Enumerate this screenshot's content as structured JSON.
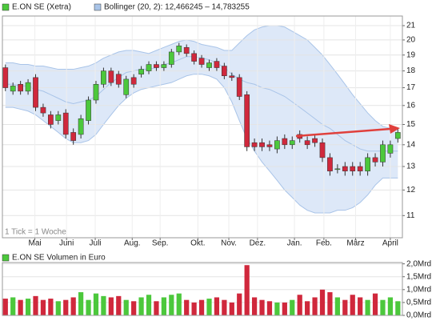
{
  "chart_data": [
    {
      "type": "candlestick",
      "series": [
        {
          "name": "E.ON SE (Xetra)",
          "up_color": "#4cc83c",
          "down_color": "#d0283c",
          "open": [
            18.2,
            16.8,
            17.2,
            16.8,
            17.6,
            15.9,
            15.5,
            15.2,
            15.6,
            14.6,
            14.5,
            15.2,
            16.3,
            17.2,
            18.0,
            17.8,
            16.6,
            17.6,
            17.8,
            18.0,
            18.4,
            18.2,
            18.4,
            19.2,
            19.5,
            19.1,
            18.8,
            18.2,
            18.6,
            18.3,
            17.7,
            17.6,
            16.6,
            14.1,
            14.1,
            14.0,
            13.8,
            14.3,
            14.0,
            14.5,
            14.2,
            14.3,
            14.1,
            13.4,
            12.9,
            13.0,
            13.0,
            13.0,
            12.8,
            13.4,
            13.2,
            13.6,
            14.3
          ],
          "high": [
            18.4,
            17.3,
            17.4,
            17.5,
            17.8,
            16.1,
            15.7,
            15.7,
            15.8,
            14.8,
            15.5,
            16.5,
            17.4,
            18.2,
            18.2,
            18.0,
            17.7,
            17.8,
            18.3,
            18.6,
            18.6,
            18.6,
            19.4,
            19.8,
            19.7,
            19.3,
            19.0,
            18.7,
            18.8,
            18.5,
            17.9,
            17.8,
            16.8,
            14.3,
            14.3,
            14.2,
            14.4,
            14.5,
            14.4,
            14.7,
            14.4,
            14.5,
            14.3,
            13.6,
            13.1,
            13.2,
            13.2,
            13.2,
            13.6,
            13.6,
            14.2,
            14.2,
            14.8
          ],
          "low": [
            16.8,
            16.6,
            16.6,
            16.6,
            15.7,
            15.4,
            14.8,
            15.0,
            14.3,
            14.0,
            14.3,
            15.0,
            16.1,
            17.0,
            17.1,
            17.0,
            16.4,
            17.0,
            17.6,
            17.8,
            18.0,
            18.0,
            18.2,
            19.0,
            18.9,
            18.4,
            18.2,
            18.0,
            18.0,
            17.5,
            17.4,
            16.3,
            13.7,
            13.7,
            13.7,
            13.7,
            13.6,
            13.8,
            13.8,
            14.1,
            13.8,
            13.9,
            13.2,
            12.6,
            12.7,
            12.6,
            12.6,
            12.6,
            12.6,
            13.0,
            13.0,
            13.4,
            14.1
          ],
          "close": [
            17.0,
            17.1,
            16.8,
            17.3,
            15.9,
            15.6,
            15.0,
            15.5,
            14.5,
            14.2,
            15.3,
            16.3,
            17.2,
            18.0,
            17.3,
            17.2,
            17.5,
            17.2,
            18.1,
            18.4,
            18.2,
            18.4,
            19.2,
            19.6,
            19.1,
            18.6,
            18.4,
            18.5,
            18.2,
            17.7,
            17.6,
            16.5,
            13.9,
            13.9,
            13.9,
            13.9,
            14.2,
            14.0,
            14.2,
            14.3,
            14.0,
            14.1,
            13.4,
            12.8,
            12.9,
            12.8,
            12.8,
            12.8,
            13.4,
            13.2,
            14.0,
            14.0,
            14.6
          ]
        }
      ],
      "bollinger": {
        "name": "Bollinger (20, 2): 12,466245 – 14,783255",
        "color": "#a9c4e8",
        "fill": "#dde8f8",
        "upper": [
          18.5,
          18.5,
          18.4,
          18.4,
          18.3,
          18.3,
          18.2,
          18.1,
          18.1,
          18.1,
          18.2,
          18.3,
          18.5,
          18.8,
          19.0,
          19.2,
          19.3,
          19.3,
          19.2,
          19.1,
          19.3,
          19.5,
          19.7,
          19.9,
          20.0,
          19.9,
          19.7,
          19.6,
          19.5,
          19.3,
          19.3,
          19.8,
          20.3,
          20.7,
          20.9,
          21.0,
          21.0,
          20.9,
          20.6,
          20.3,
          20.0,
          19.5,
          19.0,
          18.4,
          17.8,
          17.2,
          16.6,
          16.1,
          15.6,
          15.2,
          14.9,
          14.8,
          14.8
        ],
        "middle": [
          17.2,
          17.2,
          17.1,
          17.1,
          16.9,
          16.8,
          16.6,
          16.4,
          16.2,
          16.1,
          16.2,
          16.3,
          16.5,
          16.9,
          17.3,
          17.6,
          17.9,
          18.0,
          18.1,
          18.1,
          18.2,
          18.4,
          18.5,
          18.7,
          18.9,
          18.9,
          18.8,
          18.7,
          18.5,
          18.2,
          17.8,
          17.5,
          17.3,
          17.2,
          17.0,
          16.9,
          16.7,
          16.5,
          16.2,
          15.9,
          15.6,
          15.3,
          15.0,
          14.8,
          14.5,
          14.2,
          14.0,
          13.8,
          13.7,
          13.7,
          13.7,
          13.7,
          13.7
        ],
        "lower": [
          15.9,
          15.9,
          15.8,
          15.7,
          15.5,
          15.2,
          14.9,
          14.6,
          14.3,
          14.1,
          14.1,
          14.2,
          14.5,
          15.0,
          15.5,
          16.0,
          16.4,
          16.7,
          16.9,
          17.0,
          17.1,
          17.2,
          17.3,
          17.5,
          17.7,
          17.8,
          17.8,
          17.7,
          17.5,
          17.0,
          16.2,
          15.2,
          14.3,
          13.7,
          13.2,
          12.8,
          12.4,
          12.0,
          11.7,
          11.4,
          11.2,
          11.1,
          11.1,
          11.1,
          11.2,
          11.2,
          11.3,
          11.5,
          11.8,
          12.2,
          12.5,
          12.5,
          12.5
        ]
      },
      "x": [
        0,
        1,
        2,
        3,
        4,
        5,
        6,
        7,
        8,
        9,
        10,
        11,
        12,
        13,
        14,
        15,
        16,
        17,
        18,
        19,
        20,
        21,
        22,
        23,
        24,
        25,
        26,
        27,
        28,
        29,
        30,
        31,
        32,
        33,
        34,
        35,
        36,
        37,
        38,
        39,
        40,
        41,
        42,
        43,
        44,
        45,
        46,
        47,
        48,
        49,
        50,
        51,
        52
      ],
      "xlim": [
        -0.4,
        52.6
      ],
      "xticks": [
        {
          "value": 3.9,
          "label": "Mai"
        },
        {
          "value": 8.1,
          "label": "Juni"
        },
        {
          "value": 11.9,
          "label": "Juli"
        },
        {
          "value": 16.8,
          "label": "Aug."
        },
        {
          "value": 20.5,
          "label": "Sep."
        },
        {
          "value": 25.5,
          "label": "Okt."
        },
        {
          "value": 29.6,
          "label": "Nov."
        },
        {
          "value": 33.4,
          "label": "Dez."
        },
        {
          "value": 38.3,
          "label": "Jan."
        },
        {
          "value": 42.2,
          "label": "Feb."
        },
        {
          "value": 46.4,
          "label": "März"
        },
        {
          "value": 51.0,
          "label": "April"
        }
      ],
      "ylim": [
        10.2,
        21.7
      ],
      "log_scale": true,
      "yticks": [
        11,
        12,
        13,
        14,
        15,
        16,
        17,
        18,
        19,
        20,
        21
      ],
      "grid": true,
      "note": "1 Tick = 1 Woche"
    },
    {
      "type": "bar",
      "series": [
        {
          "name": "E.ON SE Volumen in Euro",
          "color": "#4cc83c",
          "values": [
            0.65,
            0.7,
            0.6,
            0.65,
            0.75,
            0.6,
            0.65,
            0.55,
            0.6,
            0.7,
            0.9,
            0.6,
            0.85,
            0.75,
            0.7,
            0.75,
            0.6,
            0.55,
            0.7,
            0.8,
            0.55,
            0.7,
            0.8,
            0.85,
            0.6,
            0.5,
            0.6,
            0.65,
            0.7,
            0.6,
            0.5,
            0.85,
            1.95,
            0.7,
            0.6,
            0.55,
            0.5,
            0.5,
            0.6,
            0.8,
            0.55,
            0.7,
            1.0,
            0.9,
            0.7,
            0.6,
            0.8,
            0.7,
            0.6,
            0.85,
            0.6,
            0.7,
            0.55
          ]
        }
      ],
      "ylim": [
        0,
        2.05
      ],
      "yticks": [
        {
          "value": 0,
          "label": "0,0Mrd"
        },
        {
          "value": 0.5,
          "label": "0,5Mrd"
        },
        {
          "value": 1.0,
          "label": "1,0Mrd"
        },
        {
          "value": 1.5,
          "label": "1,5Mrd"
        },
        {
          "value": 2.0,
          "label": "2,0Mrd"
        }
      ],
      "grid": true
    }
  ]
}
